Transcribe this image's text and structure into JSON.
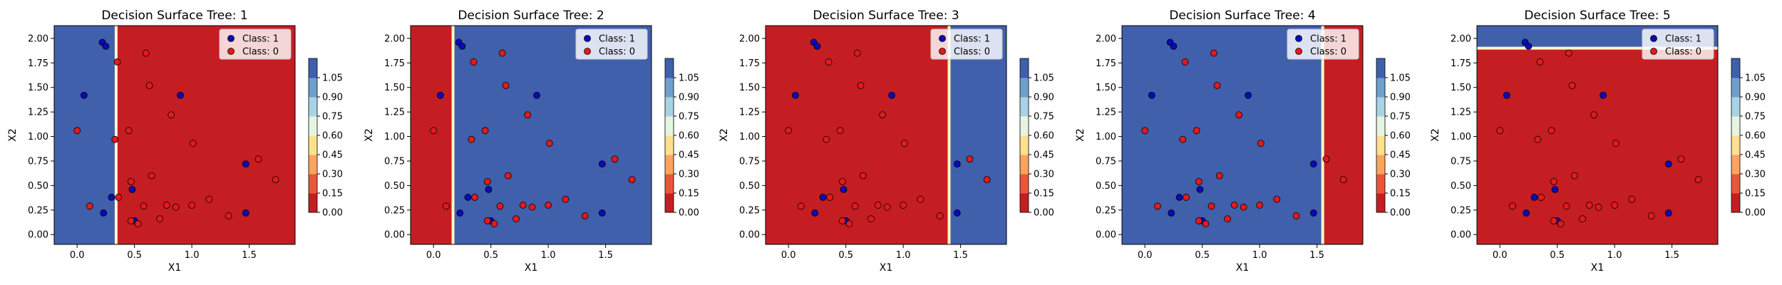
{
  "colors": {
    "blue_region": "#4060ac",
    "red_region": "#c41e23",
    "class1_point": "#0a0aba",
    "class0_point": "#e31a1c",
    "boundary": "#fff6c4",
    "colorbar": [
      "#c41e23",
      "#e9573a",
      "#fca45d",
      "#fee090",
      "#e6f4e4",
      "#a9d3e4",
      "#6fa0cb",
      "#4060ac"
    ]
  },
  "chart_data": [
    {
      "type": "scatter",
      "title": "Decision Surface Tree: 1",
      "xlabel": "X1",
      "ylabel": "X2",
      "xlim": [
        -0.2,
        1.9
      ],
      "ylim": [
        -0.1,
        2.13
      ],
      "xticks": [
        "0.0",
        "0.5",
        "1.0",
        "1.5"
      ],
      "yticks": [
        "0.00",
        "0.25",
        "0.50",
        "0.75",
        "1.00",
        "1.25",
        "1.50",
        "1.75",
        "2.00"
      ],
      "split": {
        "axis": "x",
        "value": 0.34
      },
      "regions": {
        "low": "blue",
        "high": "red"
      },
      "colorbar_ticks": [
        "0.00",
        "0.15",
        "0.30",
        "0.45",
        "0.60",
        "0.75",
        "0.90",
        "1.05"
      ],
      "legend": [
        "Class: 1",
        "Class: 0"
      ]
    },
    {
      "type": "scatter",
      "title": "Decision Surface Tree: 2",
      "xlabel": "X1",
      "ylabel": "X2",
      "xlim": [
        -0.2,
        1.9
      ],
      "ylim": [
        -0.1,
        2.13
      ],
      "xticks": [
        "0.0",
        "0.5",
        "1.0",
        "1.5"
      ],
      "yticks": [
        "0.00",
        "0.25",
        "0.50",
        "0.75",
        "1.00",
        "1.25",
        "1.50",
        "1.75",
        "2.00"
      ],
      "split": {
        "axis": "x",
        "value": 0.17
      },
      "regions": {
        "low": "red",
        "high": "blue"
      },
      "colorbar_ticks": [
        "0.00",
        "0.15",
        "0.30",
        "0.45",
        "0.60",
        "0.75",
        "0.90",
        "1.05"
      ],
      "legend": [
        "Class: 1",
        "Class: 0"
      ]
    },
    {
      "type": "scatter",
      "title": "Decision Surface Tree: 3",
      "xlabel": "X1",
      "ylabel": "X2",
      "xlim": [
        -0.2,
        1.9
      ],
      "ylim": [
        -0.1,
        2.13
      ],
      "xticks": [
        "0.0",
        "0.5",
        "1.0",
        "1.5"
      ],
      "yticks": [
        "0.00",
        "0.25",
        "0.50",
        "0.75",
        "1.00",
        "1.25",
        "1.50",
        "1.75",
        "2.00"
      ],
      "split": {
        "axis": "x",
        "value": 1.4
      },
      "regions": {
        "low": "red",
        "high": "blue"
      },
      "colorbar_ticks": [
        "0.00",
        "0.15",
        "0.30",
        "0.45",
        "0.60",
        "0.75",
        "0.90",
        "1.05"
      ],
      "legend": [
        "Class: 1",
        "Class: 0"
      ]
    },
    {
      "type": "scatter",
      "title": "Decision Surface Tree: 4",
      "xlabel": "X1",
      "ylabel": "X2",
      "xlim": [
        -0.2,
        1.9
      ],
      "ylim": [
        -0.1,
        2.13
      ],
      "xticks": [
        "0.0",
        "0.5",
        "1.0",
        "1.5"
      ],
      "yticks": [
        "0.00",
        "0.25",
        "0.50",
        "0.75",
        "1.00",
        "1.25",
        "1.50",
        "1.75",
        "2.00"
      ],
      "split": {
        "axis": "x",
        "value": 1.55
      },
      "regions": {
        "low": "blue",
        "high": "red"
      },
      "colorbar_ticks": [
        "0.00",
        "0.15",
        "0.30",
        "0.45",
        "0.60",
        "0.75",
        "0.90",
        "1.05"
      ],
      "legend": [
        "Class: 1",
        "Class: 0"
      ]
    },
    {
      "type": "scatter",
      "title": "Decision Surface Tree: 5",
      "xlabel": "X1",
      "ylabel": "X2",
      "xlim": [
        -0.2,
        1.9
      ],
      "ylim": [
        -0.1,
        2.13
      ],
      "xticks": [
        "0.0",
        "0.5",
        "1.0",
        "1.5"
      ],
      "yticks": [
        "0.00",
        "0.25",
        "0.50",
        "0.75",
        "1.00",
        "1.25",
        "1.50",
        "1.75",
        "2.00"
      ],
      "split": {
        "axis": "y",
        "value": 1.9
      },
      "regions": {
        "low": "red",
        "high": "blue"
      },
      "colorbar_ticks": [
        "0.00",
        "0.15",
        "0.30",
        "0.45",
        "0.60",
        "0.75",
        "0.90",
        "1.05"
      ],
      "legend": [
        "Class: 1",
        "Class: 0"
      ]
    }
  ],
  "points": {
    "class_1": [
      [
        0.06,
        1.42
      ],
      [
        0.22,
        1.96
      ],
      [
        0.25,
        1.92
      ],
      [
        0.3,
        0.38
      ],
      [
        0.23,
        0.22
      ],
      [
        0.48,
        0.46
      ],
      [
        0.5,
        0.14
      ],
      [
        0.9,
        1.42
      ],
      [
        1.47,
        0.72
      ],
      [
        1.47,
        0.22
      ]
    ],
    "class_0": [
      [
        0.0,
        1.06
      ],
      [
        0.11,
        0.29
      ],
      [
        0.35,
        1.76
      ],
      [
        0.33,
        0.97
      ],
      [
        0.36,
        0.38
      ],
      [
        0.45,
        1.06
      ],
      [
        0.47,
        0.54
      ],
      [
        0.47,
        0.14
      ],
      [
        0.53,
        0.11
      ],
      [
        0.58,
        0.29
      ],
      [
        0.6,
        1.85
      ],
      [
        0.63,
        1.52
      ],
      [
        0.65,
        0.6
      ],
      [
        0.72,
        0.16
      ],
      [
        0.78,
        0.3
      ],
      [
        0.82,
        1.22
      ],
      [
        0.86,
        0.28
      ],
      [
        1.01,
        0.93
      ],
      [
        1.0,
        0.3
      ],
      [
        1.15,
        0.36
      ],
      [
        1.32,
        0.19
      ],
      [
        1.58,
        0.77
      ],
      [
        1.73,
        0.56
      ]
    ]
  }
}
